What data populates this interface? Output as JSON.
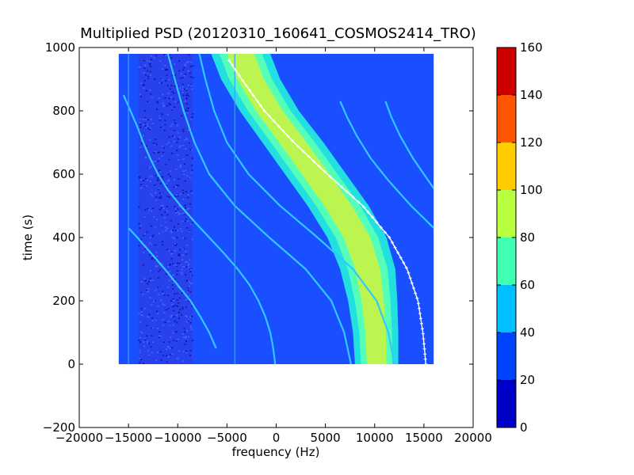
{
  "chart_data": {
    "type": "heatmap",
    "title": "Multiplied PSD (20120310_160641_COSMOS2414_TRO)",
    "xlabel": "frequency (Hz)",
    "ylabel": "time (s)",
    "xlim": [
      -20000,
      20000
    ],
    "ylim": [
      -200,
      1000
    ],
    "x_ticks": [
      -20000,
      -15000,
      -10000,
      -5000,
      0,
      5000,
      10000,
      15000,
      20000
    ],
    "x_tick_labels": [
      "−20000",
      "−15000",
      "−10000",
      "−5000",
      "0",
      "5000",
      "10000",
      "15000",
      "20000"
    ],
    "y_ticks": [
      -200,
      0,
      200,
      400,
      600,
      800,
      1000
    ],
    "y_tick_labels": [
      "−200",
      "0",
      "200",
      "400",
      "600",
      "800",
      "1000"
    ],
    "data_extent": {
      "x": [
        -16000,
        16000
      ],
      "y": [
        0,
        980
      ]
    },
    "colorbar": {
      "levels": [
        0,
        20,
        40,
        60,
        80,
        100,
        120,
        140,
        160
      ],
      "tick_labels": [
        "0",
        "20",
        "40",
        "60",
        "80",
        "100",
        "120",
        "140",
        "160"
      ],
      "colors": [
        "#0000c8",
        "#0044ff",
        "#00bfff",
        "#40ffb0",
        "#b8ff40",
        "#ffcc00",
        "#ff5500",
        "#cc0000"
      ]
    },
    "background_color": "#1a4fff",
    "band_colors": {
      "outer": "#22e0e0",
      "middle": "#55ffb8",
      "inner": "#bdf550"
    },
    "main_signal": {
      "description_free": true,
      "time": [
        980,
        900,
        800,
        700,
        600,
        500,
        400,
        300,
        200,
        100,
        0
      ],
      "center_freq": [
        -3600,
        -2600,
        -700,
        1700,
        4000,
        6300,
        8200,
        9300,
        9800,
        10100,
        10200
      ],
      "width": [
        6000,
        6000,
        6000,
        6200,
        6200,
        6200,
        6000,
        5600,
        5000,
        4600,
        4400
      ]
    },
    "fit_curve": {
      "color": "#ffffff",
      "time": [
        960,
        900,
        800,
        700,
        600,
        500,
        400,
        300,
        200,
        100,
        0
      ],
      "freq": [
        -4800,
        -3500,
        -1200,
        1800,
        5200,
        8800,
        11500,
        13300,
        14400,
        14900,
        15200
      ]
    },
    "harmonic_traces": [
      {
        "time": [
          850,
          800,
          750,
          700,
          650,
          600,
          550,
          500,
          450,
          400,
          350,
          300,
          250,
          200,
          150,
          100,
          50,
          0
        ],
        "freq": [
          -15500,
          -14800,
          -14100,
          -13500,
          -12800,
          -12000,
          -11000,
          -9700,
          -8300,
          -6800,
          -5300,
          -3900,
          -2700,
          -1800,
          -1100,
          -600,
          -300,
          -100
        ]
      },
      {
        "time": [
          980,
          900,
          800,
          700,
          600,
          500,
          400,
          300,
          200,
          100,
          0
        ],
        "freq": [
          -11000,
          -10300,
          -9400,
          -8300,
          -6800,
          -4200,
          -700,
          3000,
          5600,
          6900,
          7600
        ]
      },
      {
        "time": [
          980,
          900,
          800,
          700,
          600,
          500,
          400,
          300,
          200,
          100,
          0
        ],
        "freq": [
          -7800,
          -7200,
          -6300,
          -5000,
          -2800,
          400,
          4200,
          7800,
          10200,
          11400,
          12000
        ]
      },
      {
        "time": [
          830,
          780,
          720,
          650,
          580,
          500,
          430
        ],
        "freq": [
          6500,
          7200,
          8200,
          9600,
          11400,
          13700,
          16000
        ]
      },
      {
        "time": [
          830,
          780,
          720,
          650,
          600,
          555
        ],
        "freq": [
          11100,
          11700,
          12600,
          13900,
          15000,
          16000
        ]
      },
      {
        "time": [
          430,
          400,
          350,
          300,
          250,
          200,
          150,
          100,
          50
        ],
        "freq": [
          -15000,
          -14100,
          -12700,
          -11300,
          -10000,
          -8700,
          -7700,
          -6800,
          -6100
        ]
      }
    ],
    "vertical_streaks": [
      {
        "freq": -15000,
        "time": [
          0,
          980
        ]
      },
      {
        "freq": -4200,
        "time": [
          0,
          980
        ]
      }
    ],
    "noise_band": {
      "freq": [
        -14000,
        -8500
      ]
    }
  }
}
